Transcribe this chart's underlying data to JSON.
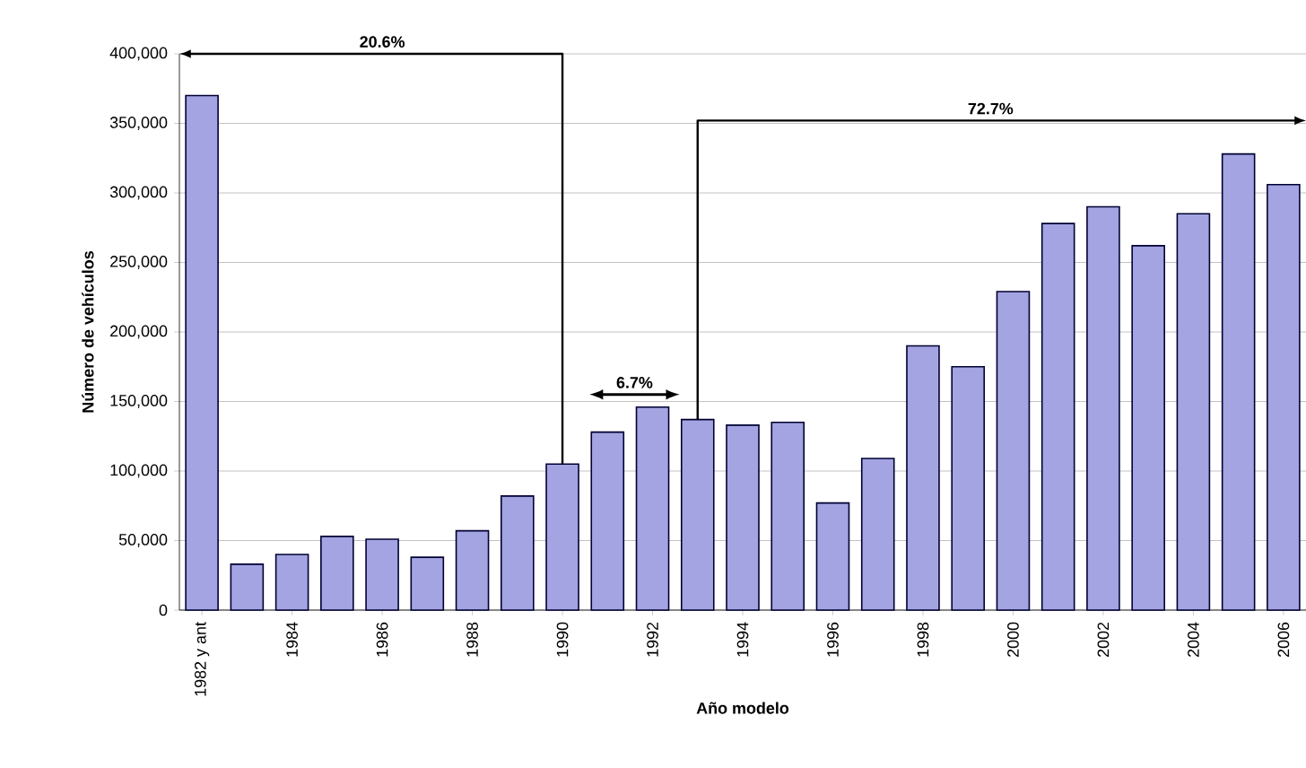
{
  "chart_data": {
    "type": "bar",
    "xlabel": "Año modelo",
    "ylabel": "Número de vehículos",
    "categories": [
      "1982 y ant",
      null,
      "1984",
      null,
      "1986",
      null,
      "1988",
      null,
      "1990",
      null,
      "1992",
      null,
      "1994",
      null,
      "1996",
      null,
      "1998",
      null,
      "2000",
      null,
      "2002",
      null,
      "2004",
      null,
      "2006"
    ],
    "values": [
      370000,
      33000,
      40000,
      53000,
      51000,
      38000,
      57000,
      82000,
      105000,
      128000,
      146000,
      137000,
      133000,
      135000,
      77000,
      109000,
      190000,
      175000,
      229000,
      278000,
      290000,
      262000,
      285000,
      328000,
      306000
    ],
    "color": "#a4a4e2",
    "ylim": [
      0,
      400000
    ],
    "yticks": [
      0,
      {
        "value": 50000,
        "label": "50,000"
      },
      {
        "value": 100000,
        "label": "100,000"
      },
      {
        "value": 150000,
        "label": "150,000"
      },
      {
        "value": 200000,
        "label": "200,000"
      },
      {
        "value": 250000,
        "label": "250,000"
      },
      {
        "value": 300000,
        "label": "300,000"
      },
      {
        "value": 350000,
        "label": "350,000"
      },
      {
        "value": 400000,
        "label": "400,000"
      }
    ],
    "grid": "y",
    "annotations": [
      "20.6%",
      "6.7%",
      "72.7%"
    ]
  }
}
